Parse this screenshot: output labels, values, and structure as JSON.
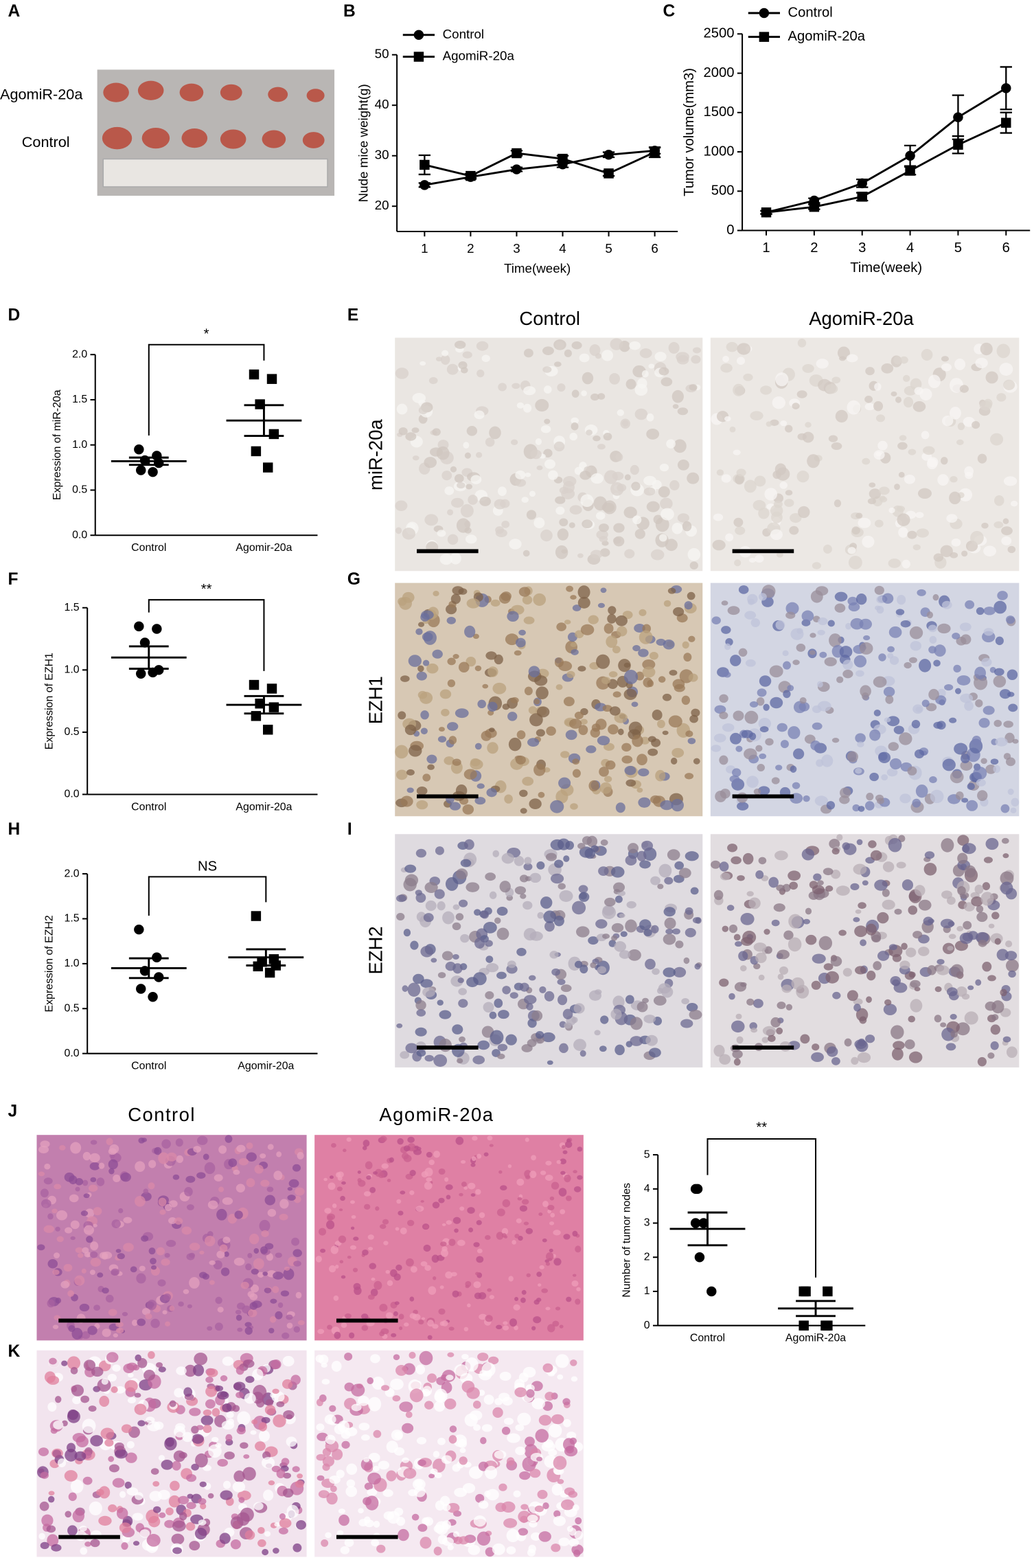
{
  "panel_labels": [
    "A",
    "B",
    "C",
    "D",
    "E",
    "F",
    "G",
    "H",
    "I",
    "J",
    "K"
  ],
  "photos": {
    "A": {
      "rows": [
        "AgomiR-20a",
        "Control"
      ]
    },
    "E": {
      "columns": [
        "Control",
        "AgomiR-20a"
      ],
      "rows": [
        "miR-20a",
        "EZH1",
        "EZH2"
      ]
    },
    "J": {
      "columns": [
        "Control",
        "AgomiR-20a"
      ]
    }
  },
  "chart_data": [
    {
      "type": "line",
      "xlabel": "Time(week)",
      "ylabel": "Nude mice weight(g)",
      "x": [
        1,
        2,
        3,
        4,
        5,
        6
      ],
      "xlim": [
        0.4,
        6.5
      ],
      "xticks": [
        1,
        2,
        3,
        4,
        5,
        6
      ],
      "ylim": [
        15,
        50
      ],
      "yticks": [
        20,
        30,
        40,
        50
      ],
      "series": [
        {
          "name": "Control",
          "color": "#000000",
          "marker": "circle",
          "values": [
            24.2,
            25.8,
            27.3,
            28.3,
            30.2,
            31.0
          ],
          "errors": [
            0.4,
            0.4,
            0.4,
            0.6,
            0.5,
            0.6
          ]
        },
        {
          "name": "AgomiR-20a",
          "color": "#000000",
          "marker": "square",
          "values": [
            28.2,
            26.0,
            30.5,
            29.4,
            26.5,
            30.7
          ],
          "errors": [
            1.9,
            0.4,
            0.5,
            0.6,
            0.5,
            1.0
          ]
        }
      ]
    },
    {
      "type": "line",
      "xlabel": "Time(week)",
      "ylabel": "Tumor volume(mm3)",
      "x": [
        1,
        2,
        3,
        4,
        5,
        6
      ],
      "xlim": [
        0.5,
        6.5
      ],
      "xticks": [
        1,
        2,
        3,
        4,
        5,
        6
      ],
      "ylim": [
        0,
        2500
      ],
      "yticks": [
        0,
        500,
        1000,
        1500,
        2000,
        2500
      ],
      "series": [
        {
          "name": "Control",
          "color": "#000000",
          "marker": "circle",
          "values": [
            230,
            380,
            600,
            950,
            1440,
            1810
          ],
          "errors": [
            20,
            30,
            50,
            130,
            280,
            270
          ]
        },
        {
          "name": "AgomiR-20a",
          "color": "#000000",
          "marker": "square",
          "values": [
            230,
            300,
            430,
            760,
            1090,
            1370
          ],
          "errors": [
            20,
            30,
            50,
            50,
            110,
            130
          ]
        }
      ]
    },
    {
      "type": "dotplot",
      "ylabel": "Expression of miR-20a",
      "significance": "*",
      "categories": [
        "Control",
        "Agomir-20a"
      ],
      "ylim": [
        0,
        2
      ],
      "yticks": [
        {
          "value": 0,
          "label": "0.0"
        },
        {
          "value": 0.5,
          "label": "0.5"
        },
        {
          "value": 1,
          "label": "1.0"
        },
        {
          "value": 1.5,
          "label": "1.5"
        },
        {
          "value": 2,
          "label": "2.0"
        }
      ],
      "groups": [
        {
          "marker": "circle",
          "values": [
            0.95,
            0.88,
            0.83,
            0.8,
            0.72,
            0.7
          ],
          "mean": 0.82,
          "sem": 0.04
        },
        {
          "marker": "square",
          "values": [
            1.78,
            1.73,
            1.45,
            1.12,
            0.93,
            0.75
          ],
          "mean": 1.27,
          "sem": 0.17
        }
      ]
    },
    {
      "type": "dotplot",
      "ylabel": "Expression of EZH1",
      "significance": "**",
      "categories": [
        "Control",
        "Agomir-20a"
      ],
      "ylim": [
        0,
        1.5
      ],
      "yticks": [
        {
          "value": 0,
          "label": "0.0"
        },
        {
          "value": 0.5,
          "label": "0.5"
        },
        {
          "value": 1,
          "label": "1.0"
        },
        {
          "value": 1.5,
          "label": "1.5"
        }
      ],
      "groups": [
        {
          "marker": "circle",
          "values": [
            1.35,
            1.33,
            1.22,
            1.0,
            0.97,
            0.98
          ],
          "mean": 1.1,
          "sem": 0.09
        },
        {
          "marker": "square",
          "values": [
            0.88,
            0.85,
            0.73,
            0.7,
            0.63,
            0.52
          ],
          "mean": 0.72,
          "sem": 0.07
        }
      ]
    },
    {
      "type": "dotplot",
      "ylabel": "Expression of EZH2",
      "significance": "NS",
      "categories": [
        "Control",
        "Agomir-20a"
      ],
      "ylim": [
        0,
        2
      ],
      "yticks": [
        {
          "value": 0,
          "label": "0.0"
        },
        {
          "value": 0.5,
          "label": "0.5"
        },
        {
          "value": 1,
          "label": "1.0"
        },
        {
          "value": 1.5,
          "label": "1.5"
        },
        {
          "value": 2,
          "label": "2.0"
        }
      ],
      "groups": [
        {
          "marker": "circle",
          "values": [
            1.38,
            1.07,
            0.92,
            0.85,
            0.72,
            0.63
          ],
          "mean": 0.95,
          "sem": 0.11
        },
        {
          "marker": "square",
          "values": [
            1.53,
            1.05,
            1.02,
            0.98,
            0.97,
            0.9
          ],
          "mean": 1.07,
          "sem": 0.09
        }
      ]
    },
    {
      "type": "dotplot",
      "ylabel": "Number of tumor nodes",
      "significance": "**",
      "categories": [
        "Control",
        "AgomiR-20a"
      ],
      "ylim": [
        0,
        5
      ],
      "yticks": [
        0,
        1,
        2,
        3,
        4,
        5
      ],
      "groups": [
        {
          "marker": "circle",
          "values": [
            4,
            4,
            3,
            3,
            2,
            1
          ],
          "mean": 2.83,
          "sem": 0.48
        },
        {
          "marker": "square",
          "values": [
            1,
            1,
            1,
            0,
            0,
            0
          ],
          "mean": 0.5,
          "sem": 0.22
        }
      ]
    }
  ]
}
